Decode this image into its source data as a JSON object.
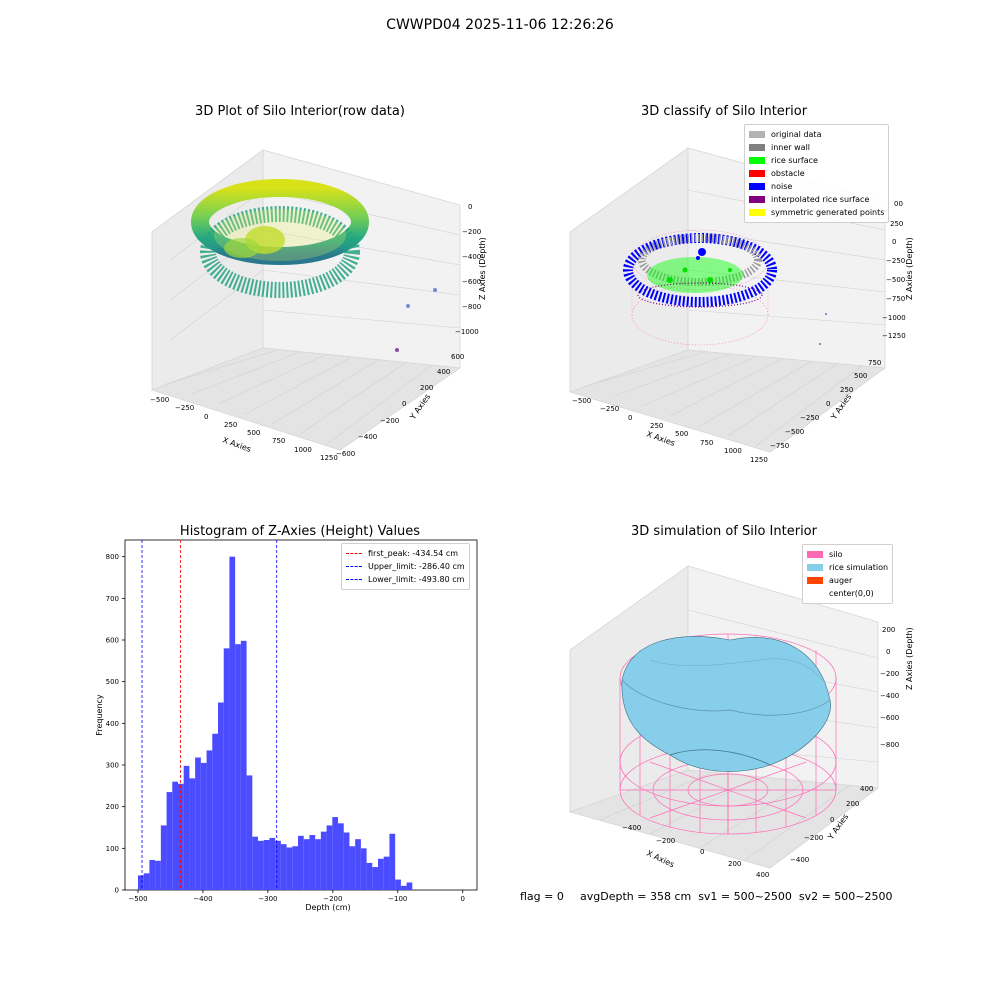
{
  "suptitle": "CWWPD04 2025-11-06 12:26:26",
  "plot1": {
    "title": "3D Plot of Silo Interior(row data)",
    "xlabel": "X Axies",
    "ylabel": "Y Axies",
    "zlabel": "Z Axies (Depth)",
    "xticks": [
      "−500",
      "−250",
      "0",
      "250",
      "500",
      "750",
      "1000",
      "1250"
    ],
    "yticks": [
      "−600",
      "−400",
      "−200",
      "0",
      "200",
      "400",
      "600"
    ],
    "zticks": [
      "0",
      "−200",
      "−400",
      "−600",
      "−800",
      "−1000"
    ]
  },
  "plot2": {
    "title": "3D classify of Silo Interior",
    "xlabel": "X Axies",
    "ylabel": "Y Axies",
    "zlabel": "Z Axies (Depth)",
    "xticks": [
      "−500",
      "−250",
      "0",
      "250",
      "500",
      "750",
      "1000",
      "1250"
    ],
    "yticks": [
      "−750",
      "−500",
      "−250",
      "0",
      "250",
      "500",
      "750"
    ],
    "zticks": [
      "250",
      "0",
      "−250",
      "−500",
      "−750",
      "−1000",
      "−1250"
    ],
    "ztick_partial": "00",
    "legend": [
      {
        "label": "original data",
        "color": "#b3b3b3"
      },
      {
        "label": "inner wall",
        "color": "#808080"
      },
      {
        "label": "rice surface",
        "color": "#00ff00"
      },
      {
        "label": "obstacle",
        "color": "#ff0000"
      },
      {
        "label": "noise",
        "color": "#0000ff"
      },
      {
        "label": "interpolated rice surface",
        "color": "#800080"
      },
      {
        "label": "symmetric generated points",
        "color": "#ffff00"
      }
    ]
  },
  "plot3": {
    "title": "Histogram of Z-Axies (Height) Values",
    "xlabel": "Depth (cm)",
    "ylabel": "Frequency",
    "xticks": [
      "−500",
      "−400",
      "−300",
      "−200",
      "−100",
      "0"
    ],
    "legend": [
      {
        "label": "first_peak: -434.54 cm",
        "color": "#ff0000"
      },
      {
        "label": "Upper_limit: -286.40 cm",
        "color": "#0000ff"
      },
      {
        "label": "Lower_limit: -493.80 cm",
        "color": "#0000ff"
      }
    ]
  },
  "plot4": {
    "title": "3D simulation of Silo Interior",
    "xlabel": "X Axies",
    "ylabel": "Y Axies",
    "zlabel": "Z Axies (Depth)",
    "xticks": [
      "−400",
      "−200",
      "0",
      "200",
      "400"
    ],
    "yticks": [
      "−400",
      "−200",
      "0",
      "200",
      "400"
    ],
    "zticks": [
      "200",
      "0",
      "−200",
      "−400",
      "−600",
      "−800"
    ],
    "legend": [
      {
        "label": "silo",
        "color": "#ff69b4"
      },
      {
        "label": "rice simulation",
        "color": "#87ceeb"
      },
      {
        "label": "auger",
        "color": "#ff4500"
      },
      {
        "label": "center(0,0)",
        "color": ""
      }
    ]
  },
  "footer": {
    "flag": "flag = 0",
    "stats": "avgDepth = 358 cm  sv1 = 500~2500  sv2 = 500~2500"
  },
  "chart_data": [
    {
      "type": "scatter",
      "title": "3D Plot of Silo Interior(row data)",
      "xlabel": "X Axies",
      "ylabel": "Y Axies",
      "zlabel": "Z Axies (Depth)",
      "xlim": [
        -600,
        1300
      ],
      "ylim": [
        -650,
        650
      ],
      "zlim": [
        -1100,
        50
      ],
      "colormap": "viridis",
      "note_points": [
        {
          "x": 1000,
          "y": 0,
          "z": -600
        },
        {
          "x": 1150,
          "y": 200,
          "z": -650
        },
        {
          "x": 1150,
          "y": -50,
          "z": -1000
        }
      ]
    },
    {
      "type": "scatter",
      "title": "3D classify of Silo Interior",
      "xlabel": "X Axies",
      "ylabel": "Y Axies",
      "zlabel": "Z Axies (Depth)",
      "xlim": [
        -600,
        1300
      ],
      "ylim": [
        -800,
        800
      ],
      "zlim": [
        -1300,
        300
      ],
      "series": [
        {
          "name": "original data"
        },
        {
          "name": "inner wall"
        },
        {
          "name": "rice surface"
        },
        {
          "name": "obstacle"
        },
        {
          "name": "noise"
        },
        {
          "name": "interpolated rice surface"
        },
        {
          "name": "symmetric generated points"
        }
      ]
    },
    {
      "type": "bar",
      "title": "Histogram of Z-Axies (Height) Values",
      "xlabel": "Depth (cm)",
      "ylabel": "Frequency",
      "xlim": [
        -520,
        22
      ],
      "ylim": [
        0,
        840
      ],
      "yticks": [
        0,
        100,
        200,
        300,
        400,
        500,
        600,
        700,
        800
      ],
      "xticks": [
        -500,
        -400,
        -300,
        -200,
        -100,
        0
      ],
      "bin_start": -500,
      "bin_width": 8.8,
      "values": [
        35,
        40,
        72,
        70,
        155,
        235,
        260,
        255,
        298,
        268,
        318,
        305,
        335,
        375,
        450,
        580,
        800,
        590,
        598,
        275,
        128,
        118,
        120,
        125,
        118,
        110,
        102,
        105,
        130,
        122,
        132,
        122,
        140,
        155,
        175,
        160,
        138,
        105,
        122,
        100,
        65,
        55,
        75,
        80,
        135,
        25,
        10,
        18
      ],
      "vlines": [
        {
          "name": "first_peak",
          "x": -434.54,
          "color": "#ff0000"
        },
        {
          "name": "Upper_limit",
          "x": -286.4,
          "color": "#0000ff"
        },
        {
          "name": "Lower_limit",
          "x": -493.8,
          "color": "#0000ff"
        }
      ]
    },
    {
      "type": "surface",
      "title": "3D simulation of Silo Interior",
      "xlabel": "X Axies",
      "ylabel": "Y Axies",
      "zlabel": "Z Axies (Depth)",
      "xlim": [
        -500,
        500
      ],
      "ylim": [
        -500,
        500
      ],
      "zlim": [
        -900,
        300
      ],
      "series": [
        {
          "name": "silo"
        },
        {
          "name": "rice simulation"
        },
        {
          "name": "auger"
        },
        {
          "name": "center(0,0)"
        }
      ]
    }
  ]
}
